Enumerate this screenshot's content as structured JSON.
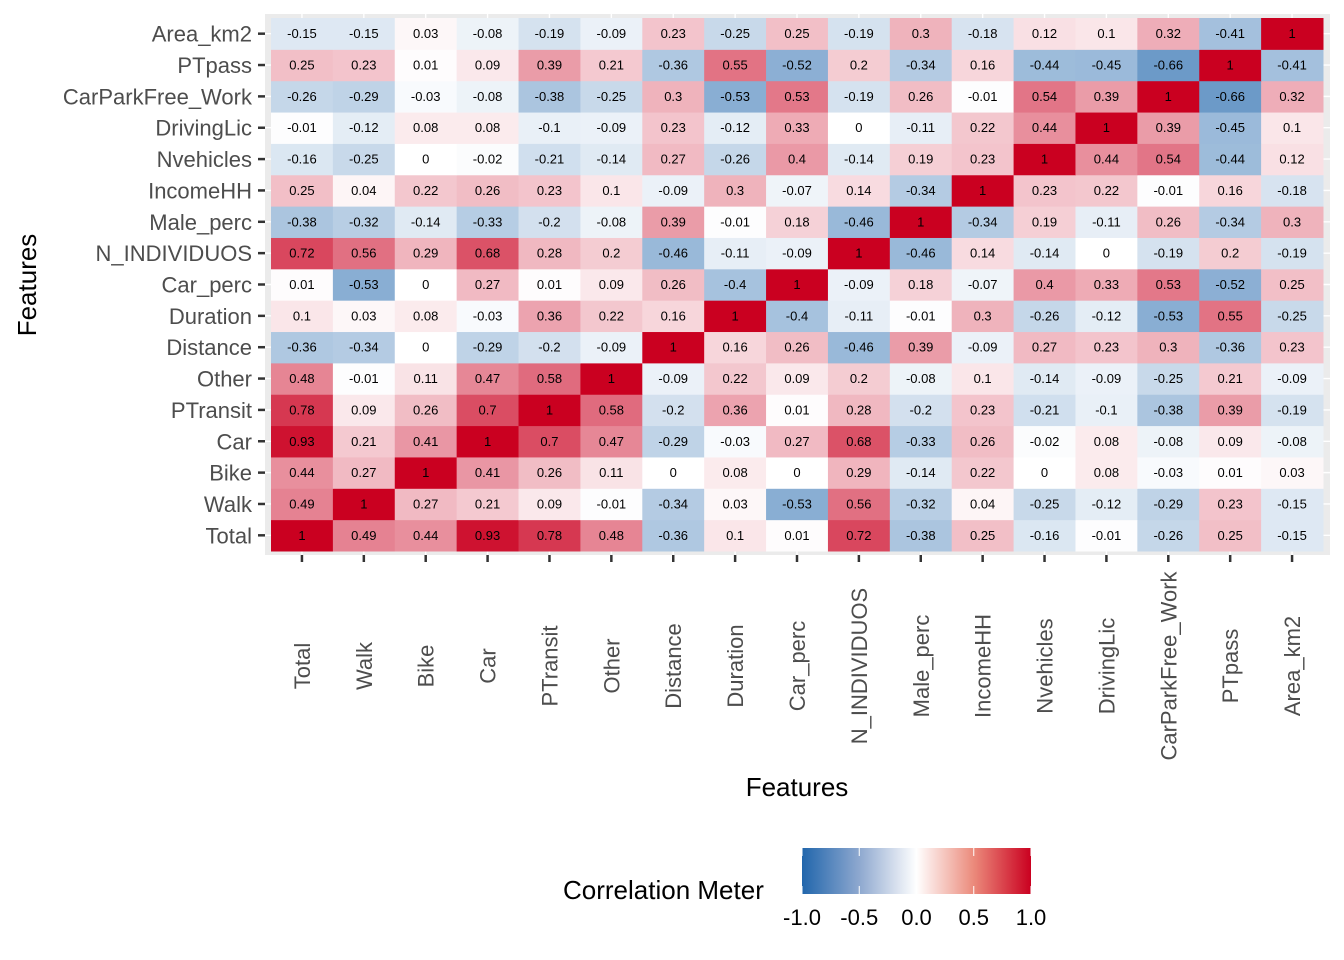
{
  "chart_data": {
    "type": "heatmap",
    "title": "",
    "xlabel": "Features",
    "ylabel": "Features",
    "features": [
      "Total",
      "Walk",
      "Bike",
      "Car",
      "PTransit",
      "Other",
      "Distance",
      "Duration",
      "Car_perc",
      "N_INDIVIDUOS",
      "Male_perc",
      "IncomeHH",
      "Nvehicles",
      "DrivingLic",
      "CarParkFree_Work",
      "PTpass",
      "Area_km2"
    ],
    "matrix": [
      [
        1,
        0.49,
        0.44,
        0.93,
        0.78,
        0.48,
        -0.36,
        0.1,
        0.01,
        0.72,
        -0.38,
        0.25,
        -0.16,
        -0.01,
        -0.26,
        0.25,
        -0.15
      ],
      [
        0.49,
        1,
        0.27,
        0.21,
        0.09,
        -0.01,
        -0.34,
        0.03,
        -0.53,
        0.56,
        -0.32,
        0.04,
        -0.25,
        -0.12,
        -0.29,
        0.23,
        -0.15
      ],
      [
        0.44,
        0.27,
        1,
        0.41,
        0.26,
        0.11,
        0,
        0.08,
        0,
        0.29,
        -0.14,
        0.22,
        0,
        0.08,
        -0.03,
        0.01,
        0.03
      ],
      [
        0.93,
        0.21,
        0.41,
        1,
        0.7,
        0.47,
        -0.29,
        -0.03,
        0.27,
        0.68,
        -0.33,
        0.26,
        -0.02,
        0.08,
        -0.08,
        0.09,
        -0.08
      ],
      [
        0.78,
        0.09,
        0.26,
        0.7,
        1,
        0.58,
        -0.2,
        0.36,
        0.01,
        0.28,
        -0.2,
        0.23,
        -0.21,
        -0.1,
        -0.38,
        0.39,
        -0.19
      ],
      [
        0.48,
        -0.01,
        0.11,
        0.47,
        0.58,
        1,
        -0.09,
        0.22,
        0.09,
        0.2,
        -0.08,
        0.1,
        -0.14,
        -0.09,
        -0.25,
        0.21,
        -0.09
      ],
      [
        -0.36,
        -0.34,
        0,
        -0.29,
        -0.2,
        -0.09,
        1,
        0.16,
        0.26,
        -0.46,
        0.39,
        -0.09,
        0.27,
        0.23,
        0.3,
        -0.36,
        0.23
      ],
      [
        0.1,
        0.03,
        0.08,
        -0.03,
        0.36,
        0.22,
        0.16,
        1,
        -0.4,
        -0.11,
        -0.01,
        0.3,
        -0.26,
        -0.12,
        -0.53,
        0.55,
        -0.25
      ],
      [
        0.01,
        -0.53,
        0,
        0.27,
        0.01,
        0.09,
        0.26,
        -0.4,
        1,
        -0.09,
        0.18,
        -0.07,
        0.4,
        0.33,
        0.53,
        -0.52,
        0.25
      ],
      [
        0.72,
        0.56,
        0.29,
        0.68,
        0.28,
        0.2,
        -0.46,
        -0.11,
        -0.09,
        1,
        -0.46,
        0.14,
        -0.14,
        0,
        -0.19,
        0.2,
        -0.19
      ],
      [
        -0.38,
        -0.32,
        -0.14,
        -0.33,
        -0.2,
        -0.08,
        0.39,
        -0.01,
        0.18,
        -0.46,
        1,
        -0.34,
        0.19,
        -0.11,
        0.26,
        -0.34,
        0.3
      ],
      [
        0.25,
        0.04,
        0.22,
        0.26,
        0.23,
        0.1,
        -0.09,
        0.3,
        -0.07,
        0.14,
        -0.34,
        1,
        0.23,
        0.22,
        -0.01,
        0.16,
        -0.18
      ],
      [
        -0.16,
        -0.25,
        0,
        -0.02,
        -0.21,
        -0.14,
        0.27,
        -0.26,
        0.4,
        -0.14,
        0.19,
        0.23,
        1,
        0.44,
        0.54,
        -0.44,
        0.12
      ],
      [
        -0.01,
        -0.12,
        0.08,
        0.08,
        -0.1,
        -0.09,
        0.23,
        -0.12,
        0.33,
        0,
        -0.11,
        0.22,
        0.44,
        1,
        0.39,
        -0.45,
        0.1
      ],
      [
        -0.26,
        -0.29,
        -0.03,
        -0.08,
        -0.38,
        -0.25,
        0.3,
        -0.53,
        0.53,
        -0.19,
        0.26,
        -0.01,
        0.54,
        0.39,
        1,
        -0.66,
        0.32
      ],
      [
        0.25,
        0.23,
        0.01,
        0.09,
        0.39,
        0.21,
        -0.36,
        0.55,
        -0.52,
        0.2,
        -0.34,
        0.16,
        -0.44,
        -0.45,
        -0.66,
        1,
        -0.41
      ],
      [
        -0.15,
        -0.15,
        0.03,
        -0.08,
        -0.19,
        -0.09,
        0.23,
        -0.25,
        0.25,
        -0.19,
        0.3,
        -0.18,
        0.12,
        0.1,
        0.32,
        -0.41,
        1
      ]
    ],
    "x_order": "left-to-right follows features",
    "y_order": "bottom-to-top follows features",
    "color_scale": {
      "low": "#2166ac",
      "mid": "#ffffff",
      "high": "#ca0020",
      "range": [
        -1,
        1
      ]
    },
    "legend": {
      "title": "Correlation Meter",
      "ticks": [
        "-1.0",
        "-0.5",
        "0.0",
        "0.5",
        "1.0"
      ],
      "tick_values": [
        -1,
        -0.5,
        0,
        0.5,
        1
      ],
      "placement": "bottom"
    },
    "grid": true
  }
}
